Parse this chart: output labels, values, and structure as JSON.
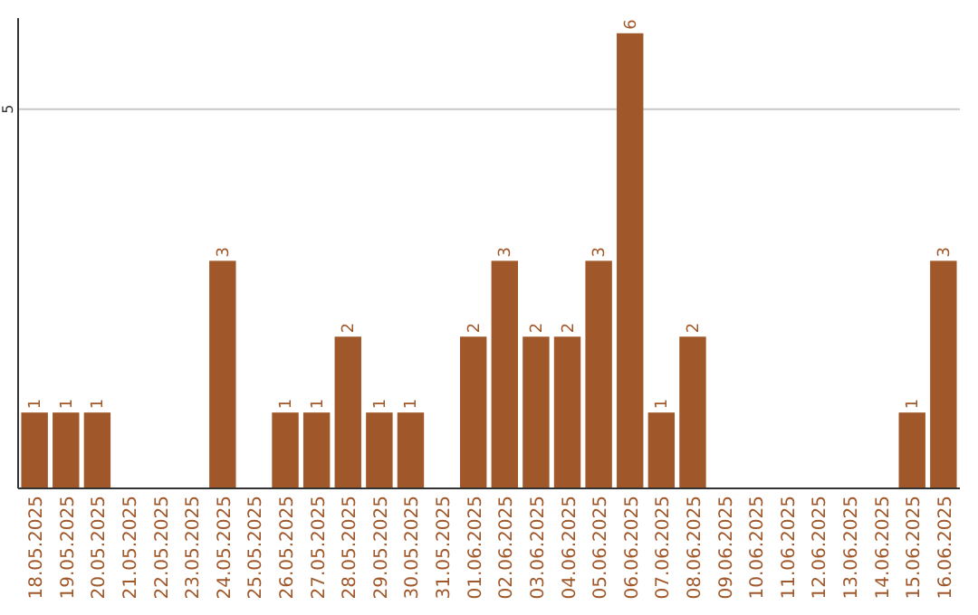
{
  "chart_data": {
    "type": "bar",
    "categories": [
      "18.05.2025",
      "19.05.2025",
      "20.05.2025",
      "21.05.2025",
      "22.05.2025",
      "23.05.2025",
      "24.05.2025",
      "25.05.2025",
      "26.05.2025",
      "27.05.2025",
      "28.05.2025",
      "29.05.2025",
      "30.05.2025",
      "31.05.2025",
      "01.06.2025",
      "02.06.2025",
      "03.06.2025",
      "04.06.2025",
      "05.06.2025",
      "06.06.2025",
      "07.06.2025",
      "08.06.2025",
      "09.06.2025",
      "10.06.2025",
      "11.06.2025",
      "12.06.2025",
      "13.06.2025",
      "14.06.2025",
      "15.06.2025",
      "16.06.2025"
    ],
    "values": [
      1,
      1,
      1,
      0,
      0,
      0,
      3,
      0,
      1,
      1,
      2,
      1,
      1,
      0,
      2,
      3,
      2,
      2,
      3,
      6,
      1,
      2,
      0,
      0,
      0,
      0,
      0,
      0,
      1,
      3
    ],
    "value_labels": [
      "1",
      "1",
      "1",
      null,
      null,
      null,
      "3",
      null,
      "1",
      "1",
      "2",
      "1",
      "1",
      null,
      "2",
      "3",
      "2",
      "2",
      "3",
      "6",
      "1",
      "2",
      null,
      null,
      null,
      null,
      null,
      null,
      "1",
      "3"
    ],
    "color": "#a0582a",
    "ylim": [
      0,
      6.2
    ],
    "yticks": [
      5
    ],
    "grid": "y"
  }
}
